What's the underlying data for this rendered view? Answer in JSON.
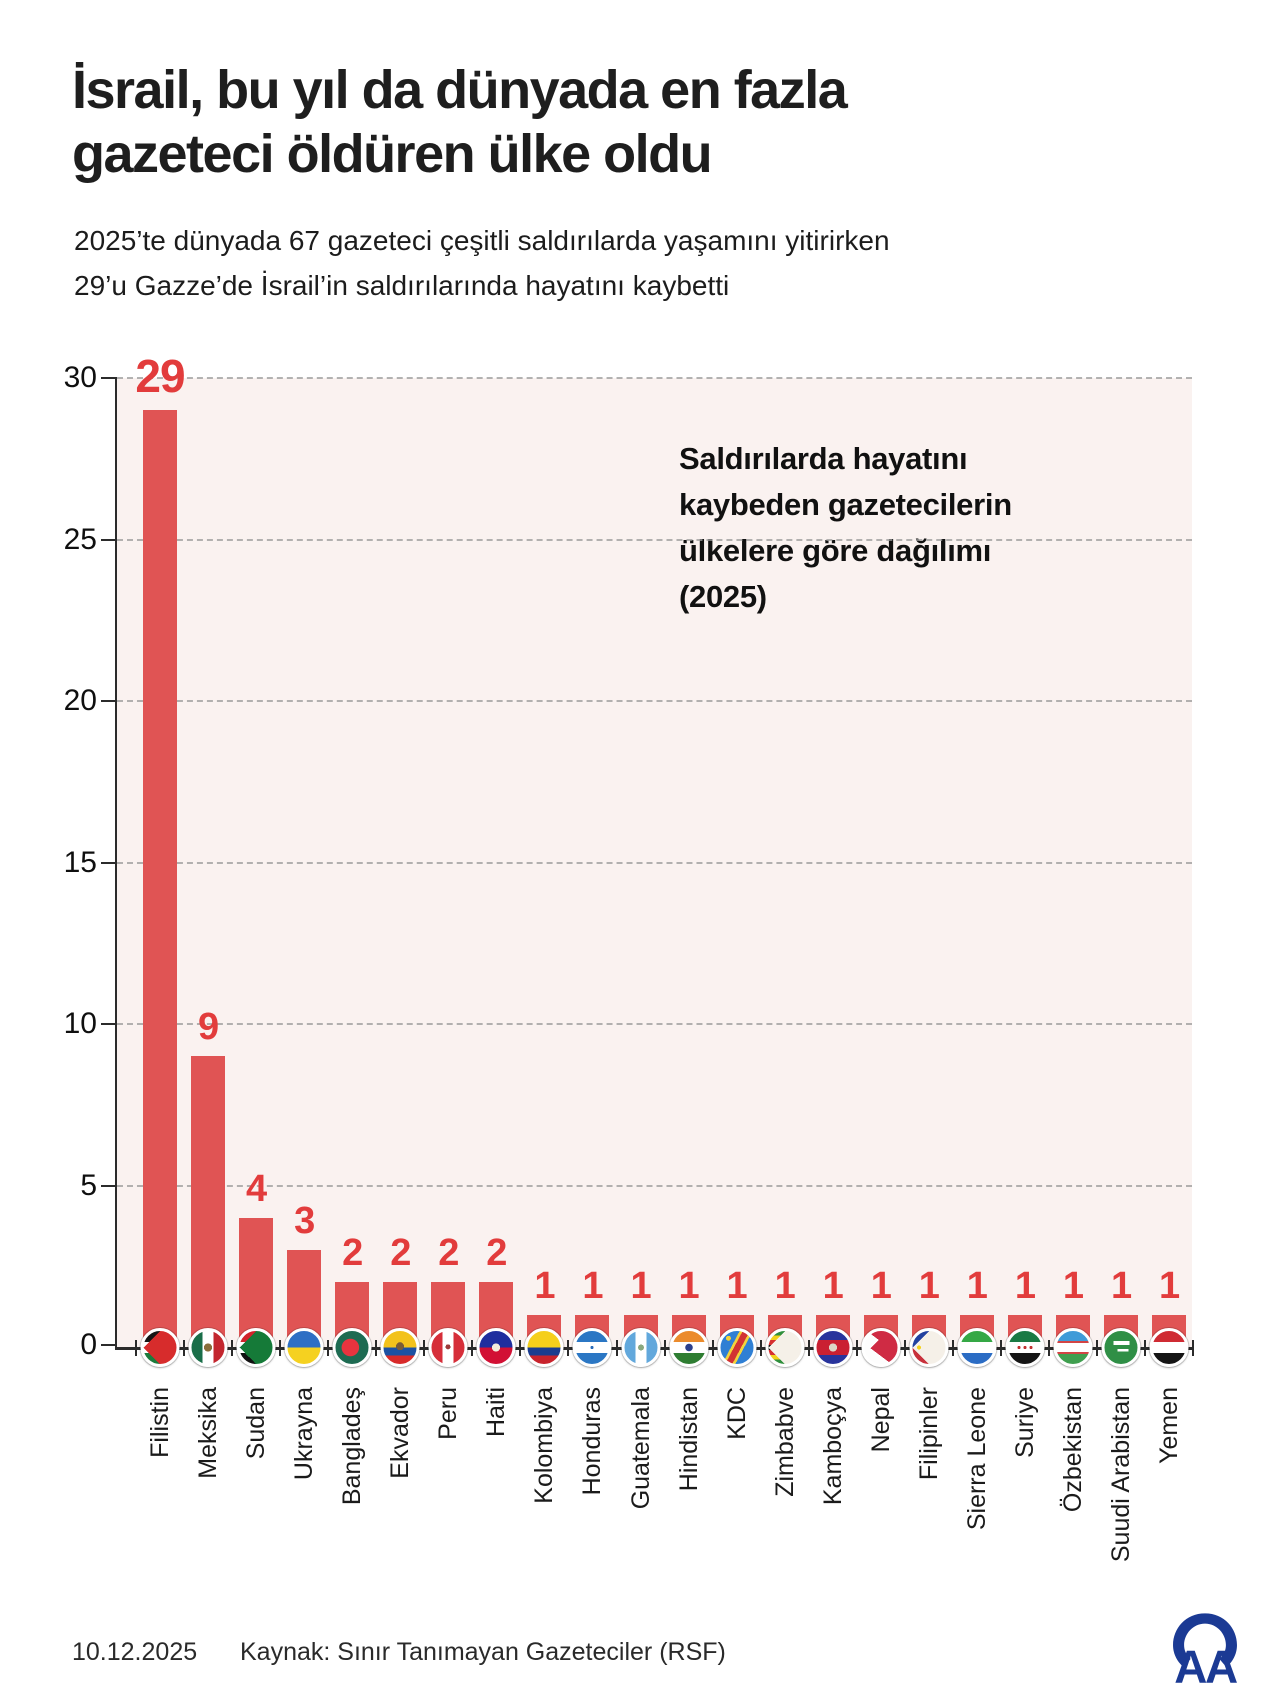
{
  "title": "İsrail, bu yıl da dünyada en fazla\ngazeteci öldüren ülke oldu",
  "subtitle": "2025’te dünyada 67 gazeteci çeşitli saldırılarda yaşamını yitirirken\n29’u Gazze’de İsrail’in saldırılarında hayatını kaybetti",
  "annotation": "Saldırılarda hayatını\nkaybeden gazetecilerin\nülkelere göre dağılımı\n(2025)",
  "footer": {
    "date": "10.12.2025",
    "source": "Kaynak: Sınır Tanımayan Gazeteciler (RSF)",
    "agency_logo": "aa-anadolu-agency-logo"
  },
  "colors": {
    "bar": "#e05454",
    "value_label": "#e23c3c",
    "plot_background": "#faf2f0",
    "axis": "#2b2b2b",
    "gridline": "#9a9a9a",
    "title_text": "#1e1e1e",
    "logo_blue": "#1b3a94"
  },
  "chart_data": {
    "type": "bar",
    "title": "Saldırılarda hayatını kaybeden gazetecilerin ülkelere göre dağılımı (2025)",
    "xlabel": "",
    "ylabel": "",
    "ylim": [
      0,
      30
    ],
    "yticks": [
      0,
      5,
      10,
      15,
      20,
      25,
      30
    ],
    "grid": "horizontal-dashed",
    "legend": "none",
    "categories": [
      "Filistin",
      "Meksika",
      "Sudan",
      "Ukrayna",
      "Bangladeş",
      "Ekvador",
      "Peru",
      "Haiti",
      "Kolombiya",
      "Honduras",
      "Guatemala",
      "Hindistan",
      "KDC",
      "Zimbabve",
      "Kamboçya",
      "Nepal",
      "Filipinler",
      "Sierra Leone",
      "Suriye",
      "Özbekistan",
      "Suudi Arabistan",
      "Yemen"
    ],
    "values": [
      29,
      9,
      4,
      3,
      2,
      2,
      2,
      2,
      1,
      1,
      1,
      1,
      1,
      1,
      1,
      1,
      1,
      1,
      1,
      1,
      1,
      1
    ],
    "flags": [
      "palestine",
      "mexico",
      "sudan",
      "ukraine",
      "bangladesh",
      "ecuador",
      "peru",
      "haiti",
      "colombia",
      "honduras",
      "guatemala",
      "india",
      "drc",
      "zimbabwe",
      "cambodia",
      "nepal",
      "philippines",
      "sierra-leone",
      "syria",
      "uzbekistan",
      "saudi-arabia",
      "yemen"
    ],
    "total": 67
  }
}
